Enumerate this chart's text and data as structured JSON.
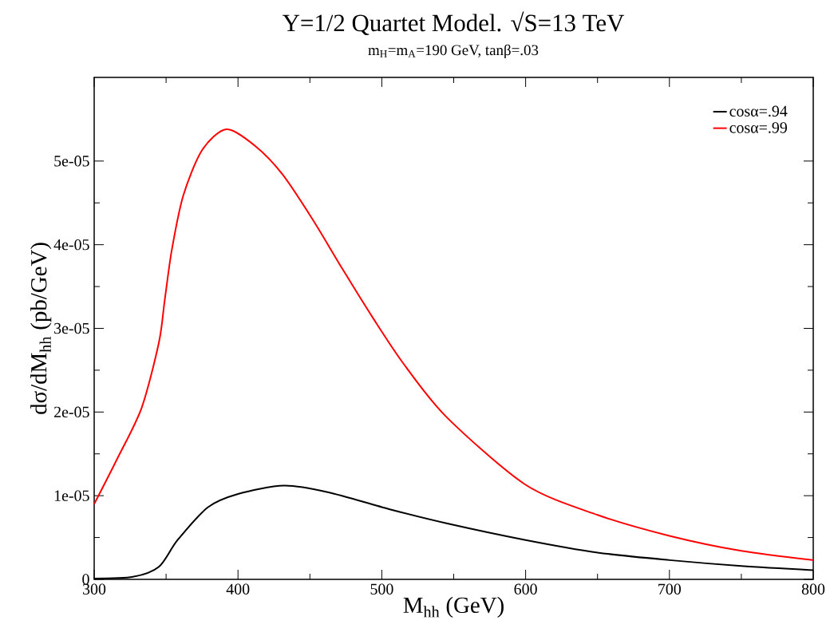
{
  "chart_data": {
    "type": "line",
    "title": "Y=1/2 Quartet Model. √S=13 TeV",
    "subtitle": "m$_{H}$=m$_{A}$=190 GeV, tanβ=.03",
    "xlabel": "M$_{hh}$ (GeV)",
    "ylabel": "dσ/dM$_{hh}$ (pb/GeV)",
    "xlim": [
      300,
      800
    ],
    "xticks": [
      300,
      400,
      500,
      600,
      700,
      800
    ],
    "ylim": [
      0,
      6e-05
    ],
    "yticks": [
      0,
      {
        "value": 1e-05,
        "label": "1e-05"
      },
      {
        "value": 2e-05,
        "label": "2e-05"
      },
      {
        "value": 3e-05,
        "label": "3e-05"
      },
      {
        "value": 4e-05,
        "label": "4e-05"
      },
      {
        "value": 5e-05,
        "label": "5e-05"
      }
    ],
    "legend": "top right",
    "line_style": "solid",
    "series": [
      {
        "name": "cosα=.94",
        "color": "#000000",
        "x": [
          300,
          327,
          345,
          358,
          379,
          400,
          432,
          463,
          505,
          545,
          600,
          650,
          700,
          750,
          800
        ],
        "values": [
          1e-07,
          3e-07,
          1.5e-06,
          4.7e-06,
          8.6e-06,
          1.02e-05,
          1.12e-05,
          1.04e-05,
          8.4e-06,
          6.7e-06,
          4.7e-06,
          3.2e-06,
          2.3e-06,
          1.6e-06,
          1.1e-06
        ]
      },
      {
        "name": "cosα=.99",
        "color": "#ff0000",
        "x": [
          300,
          316,
          333,
          345,
          349,
          354,
          362,
          375,
          392,
          412,
          431,
          452,
          473,
          494,
          515,
          545,
          600,
          650,
          700,
          750,
          800
        ],
        "values": [
          9e-06,
          1.44e-05,
          2.05e-05,
          2.83e-05,
          3.33e-05,
          3.94e-05,
          4.59e-05,
          5.13e-05,
          5.38e-05,
          5.18e-05,
          4.84e-05,
          4.3e-05,
          3.7e-05,
          3.12e-05,
          2.58e-05,
          1.94e-05,
          1.13e-05,
          7.7e-06,
          5.2e-06,
          3.4e-06,
          2.3e-06
        ]
      }
    ]
  }
}
